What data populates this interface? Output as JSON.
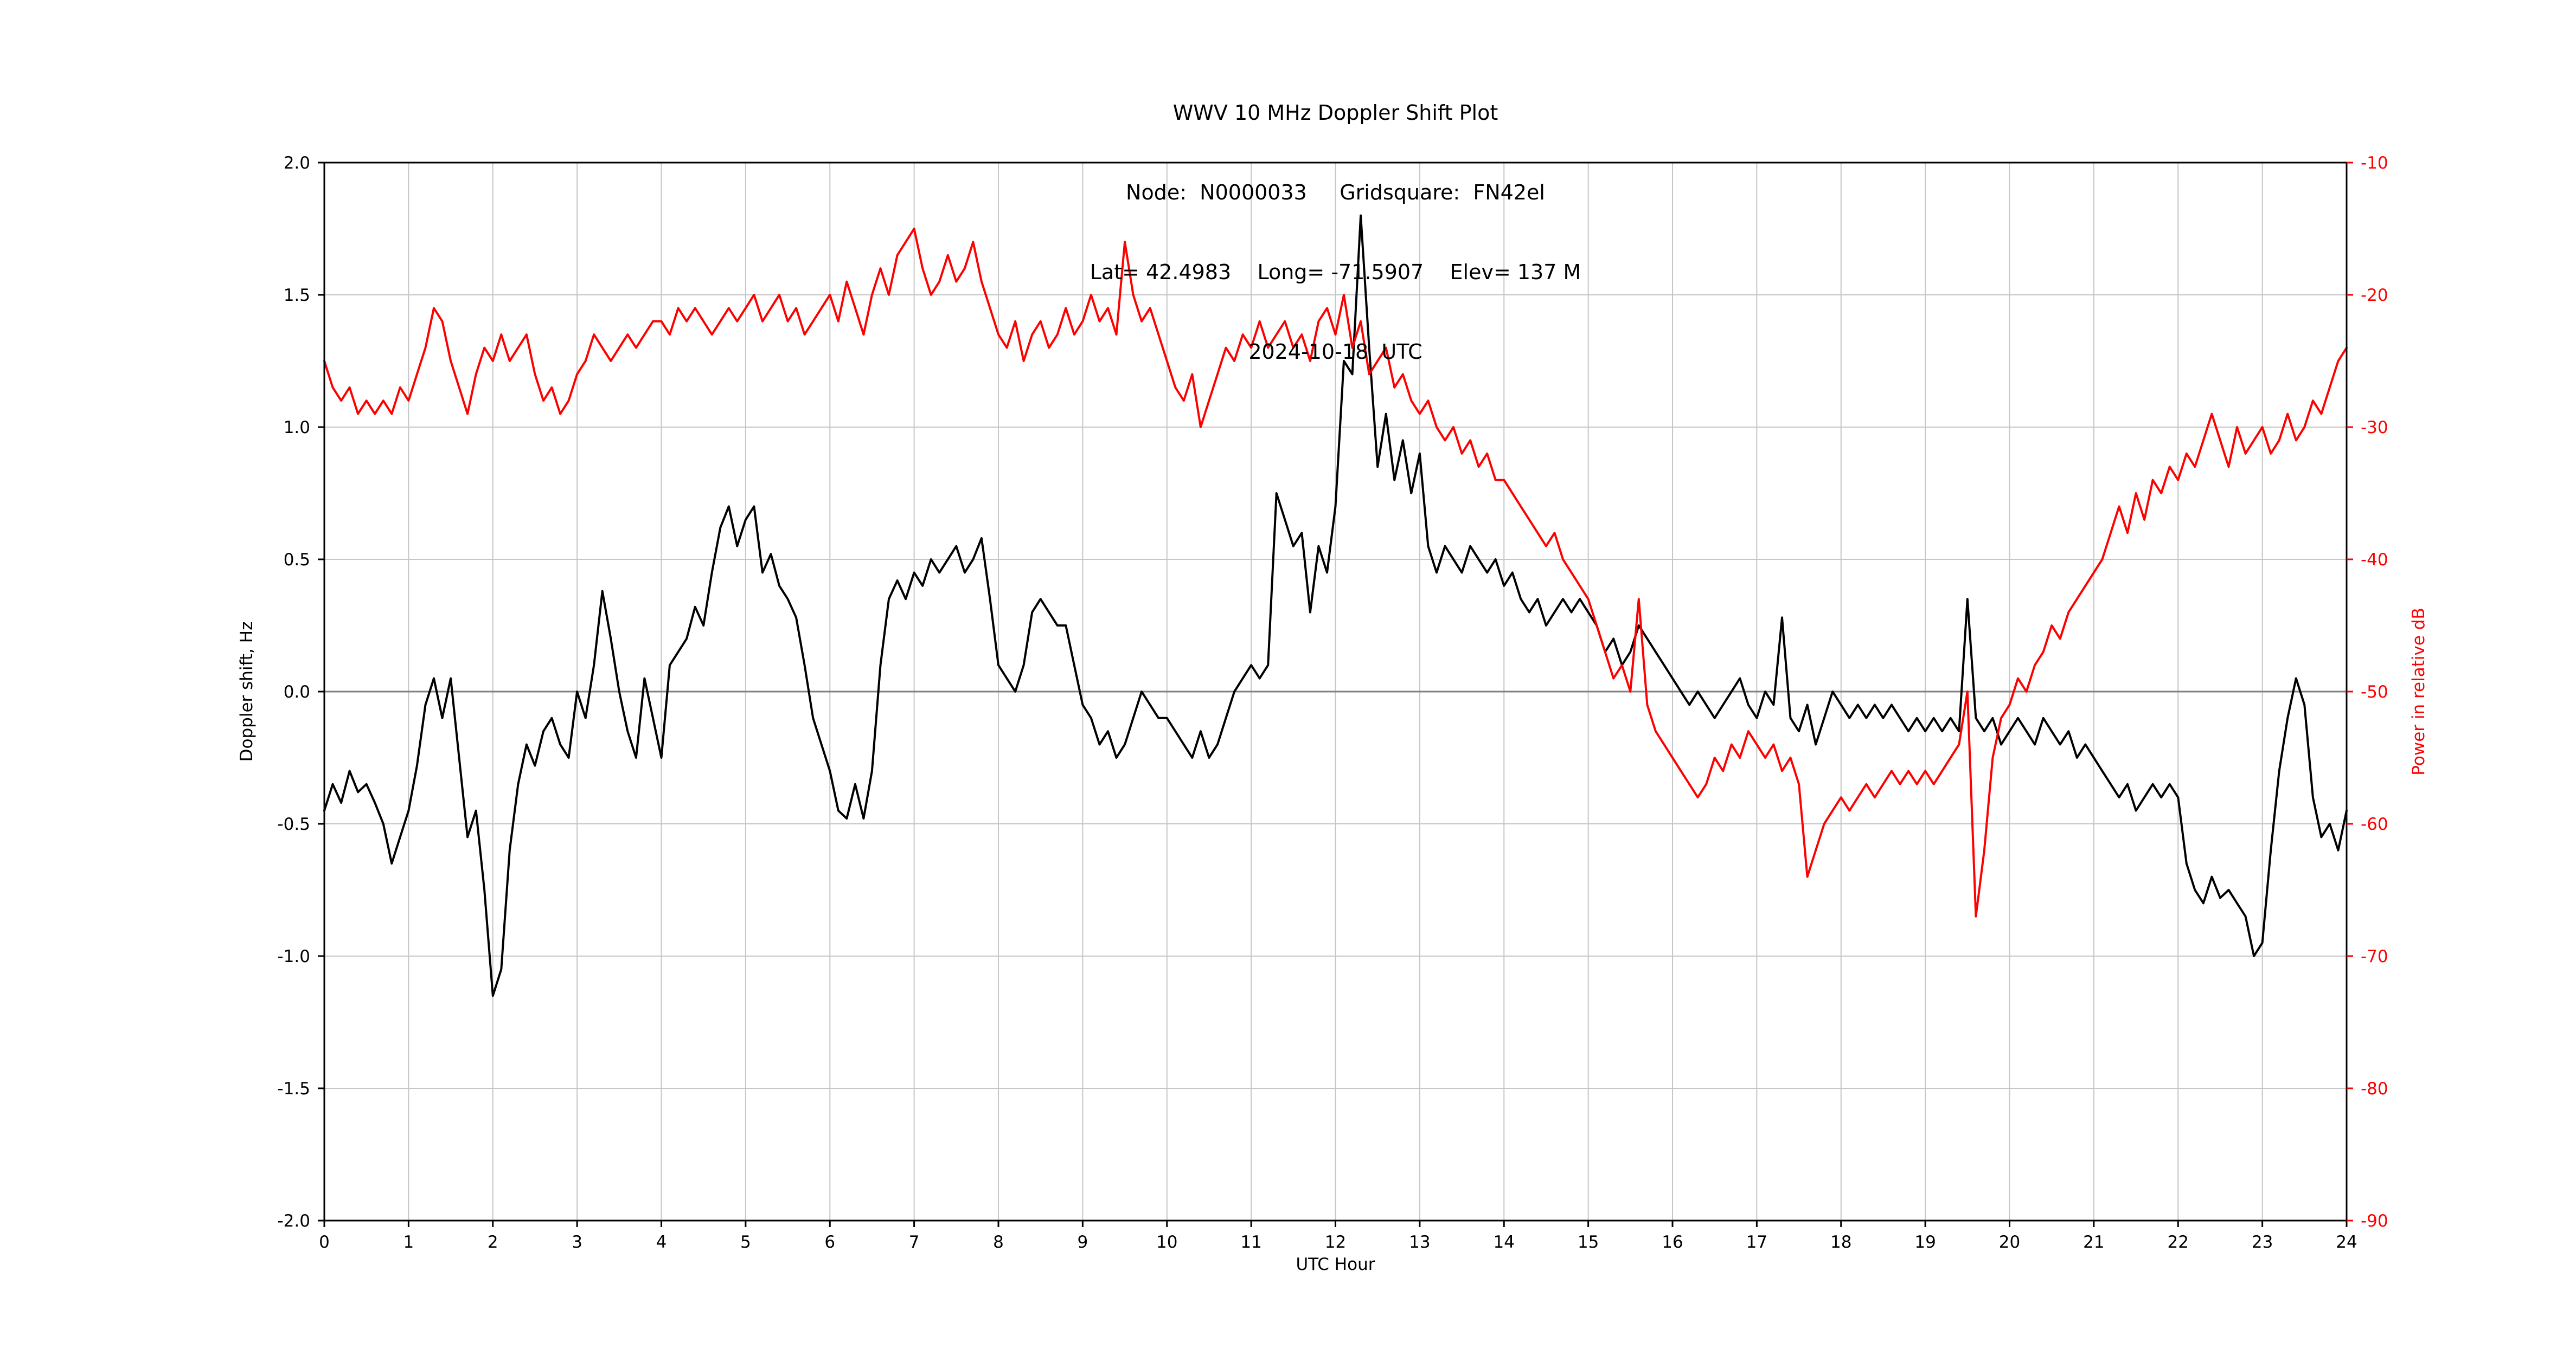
{
  "chart_data": {
    "type": "line",
    "title": "WWV 10 MHz Doppler Shift Plot",
    "subtitle_lines": [
      "Node:  N0000033     Gridsquare:  FN42el",
      "Lat= 42.4983    Long= -71.5907    Elev= 137 M",
      "2024-10-18  UTC"
    ],
    "xlabel": "UTC Hour",
    "ylabel_left": "Doppler shift, Hz",
    "ylabel_right": "Power in relative dB",
    "grid": true,
    "legend": "none",
    "x_range": [
      0,
      24
    ],
    "x_ticks": [
      0,
      1,
      2,
      3,
      4,
      5,
      6,
      7,
      8,
      9,
      10,
      11,
      12,
      13,
      14,
      15,
      16,
      17,
      18,
      19,
      20,
      21,
      22,
      23,
      24
    ],
    "x_tick_labels": [
      "0",
      "1",
      "2",
      "3",
      "4",
      "5",
      "6",
      "7",
      "8",
      "9",
      "10",
      "11",
      "12",
      "13",
      "14",
      "15",
      "16",
      "17",
      "18",
      "19",
      "20",
      "21",
      "22",
      "23",
      "24"
    ],
    "y_left_range": [
      -2.0,
      2.0
    ],
    "y_left_ticks": [
      2.0,
      1.5,
      1.0,
      0.5,
      0.0,
      -0.5,
      -1.0,
      -1.5,
      -2.0
    ],
    "y_left_tick_labels": [
      "2.0",
      "1.5",
      "1.0",
      "0.5",
      "0.0",
      "-0.5",
      "-1.0",
      "-1.5",
      "-2.0"
    ],
    "y_right_range": [
      -90,
      -10
    ],
    "y_right_ticks": [
      -10,
      -20,
      -30,
      -40,
      -50,
      -60,
      -70,
      -80,
      -90
    ],
    "y_right_tick_labels": [
      "-10",
      "-20",
      "-30",
      "-40",
      "-50",
      "-60",
      "-70",
      "-80",
      "-90"
    ],
    "zero_line": true,
    "colors": {
      "doppler": "#000000",
      "power": "#ff0000",
      "grid": "#c6c6c6",
      "zero_line": "#808080",
      "frame": "#000000"
    },
    "series": [
      {
        "id": "doppler-shift",
        "name": "Doppler shift, Hz",
        "axis": "left",
        "color": "#000000",
        "x_start": 0,
        "x_step": 0.1,
        "y": [
          -0.45,
          -0.35,
          -0.42,
          -0.3,
          -0.38,
          -0.35,
          -0.42,
          -0.5,
          -0.65,
          -0.55,
          -0.45,
          -0.28,
          -0.05,
          0.05,
          -0.1,
          0.05,
          -0.25,
          -0.55,
          -0.45,
          -0.75,
          -1.15,
          -1.05,
          -0.6,
          -0.35,
          -0.2,
          -0.28,
          -0.15,
          -0.1,
          -0.2,
          -0.25,
          0.0,
          -0.1,
          0.1,
          0.38,
          0.2,
          0.0,
          -0.15,
          -0.25,
          0.05,
          -0.1,
          -0.25,
          0.1,
          0.15,
          0.2,
          0.32,
          0.25,
          0.45,
          0.62,
          0.7,
          0.55,
          0.65,
          0.7,
          0.45,
          0.52,
          0.4,
          0.35,
          0.28,
          0.1,
          -0.1,
          -0.2,
          -0.3,
          -0.45,
          -0.48,
          -0.35,
          -0.48,
          -0.3,
          0.1,
          0.35,
          0.42,
          0.35,
          0.45,
          0.4,
          0.5,
          0.45,
          0.5,
          0.55,
          0.45,
          0.5,
          0.58,
          0.35,
          0.1,
          0.05,
          0.0,
          0.1,
          0.3,
          0.35,
          0.3,
          0.25,
          0.25,
          0.1,
          -0.05,
          -0.1,
          -0.2,
          -0.15,
          -0.25,
          -0.2,
          -0.1,
          0.0,
          -0.05,
          -0.1,
          -0.1,
          -0.15,
          -0.2,
          -0.25,
          -0.15,
          -0.25,
          -0.2,
          -0.1,
          0.0,
          0.05,
          0.1,
          0.05,
          0.1,
          0.75,
          0.65,
          0.55,
          0.6,
          0.3,
          0.55,
          0.45,
          0.7,
          1.25,
          1.2,
          1.8,
          1.3,
          0.85,
          1.05,
          0.8,
          0.95,
          0.75,
          0.9,
          0.55,
          0.45,
          0.55,
          0.5,
          0.45,
          0.55,
          0.5,
          0.45,
          0.5,
          0.4,
          0.45,
          0.35,
          0.3,
          0.35,
          0.25,
          0.3,
          0.35,
          0.3,
          0.35,
          0.3,
          0.25,
          0.15,
          0.2,
          0.1,
          0.15,
          0.25,
          0.2,
          0.15,
          0.1,
          0.05,
          0.0,
          -0.05,
          0.0,
          -0.05,
          -0.1,
          -0.05,
          0.0,
          0.05,
          -0.05,
          -0.1,
          0.0,
          -0.05,
          0.28,
          -0.1,
          -0.15,
          -0.05,
          -0.2,
          -0.1,
          0.0,
          -0.05,
          -0.1,
          -0.05,
          -0.1,
          -0.05,
          -0.1,
          -0.05,
          -0.1,
          -0.15,
          -0.1,
          -0.15,
          -0.1,
          -0.15,
          -0.1,
          -0.15,
          0.35,
          -0.1,
          -0.15,
          -0.1,
          -0.2,
          -0.15,
          -0.1,
          -0.15,
          -0.2,
          -0.1,
          -0.15,
          -0.2,
          -0.15,
          -0.25,
          -0.2,
          -0.25,
          -0.3,
          -0.35,
          -0.4,
          -0.35,
          -0.45,
          -0.4,
          -0.35,
          -0.4,
          -0.35,
          -0.4,
          -0.65,
          -0.75,
          -0.8,
          -0.7,
          -0.78,
          -0.75,
          -0.8,
          -0.85,
          -1.0,
          -0.95,
          -0.6,
          -0.3,
          -0.1,
          0.05,
          -0.05,
          -0.4,
          -0.55,
          -0.5,
          -0.6,
          -0.45
        ]
      },
      {
        "id": "power",
        "name": "Power in relative dB",
        "axis": "right",
        "color": "#ff0000",
        "x_start": 0,
        "x_step": 0.1,
        "y": [
          -25,
          -27,
          -28,
          -27,
          -29,
          -28,
          -29,
          -28,
          -29,
          -27,
          -28,
          -26,
          -24,
          -21,
          -22,
          -25,
          -27,
          -29,
          -26,
          -24,
          -25,
          -23,
          -25,
          -24,
          -23,
          -26,
          -28,
          -27,
          -29,
          -28,
          -26,
          -25,
          -23,
          -24,
          -25,
          -24,
          -23,
          -24,
          -23,
          -22,
          -22,
          -23,
          -21,
          -22,
          -21,
          -22,
          -23,
          -22,
          -21,
          -22,
          -21,
          -20,
          -22,
          -21,
          -20,
          -22,
          -21,
          -23,
          -22,
          -21,
          -20,
          -22,
          -19,
          -21,
          -23,
          -20,
          -18,
          -20,
          -17,
          -16,
          -15,
          -18,
          -20,
          -19,
          -17,
          -19,
          -18,
          -16,
          -19,
          -21,
          -23,
          -24,
          -22,
          -25,
          -23,
          -22,
          -24,
          -23,
          -21,
          -23,
          -22,
          -20,
          -22,
          -21,
          -23,
          -16,
          -20,
          -22,
          -21,
          -23,
          -25,
          -27,
          -28,
          -26,
          -30,
          -28,
          -26,
          -24,
          -25,
          -23,
          -24,
          -22,
          -24,
          -23,
          -22,
          -24,
          -23,
          -25,
          -22,
          -21,
          -23,
          -20,
          -24,
          -22,
          -26,
          -25,
          -24,
          -27,
          -26,
          -28,
          -29,
          -28,
          -30,
          -31,
          -30,
          -32,
          -31,
          -33,
          -32,
          -34,
          -34,
          -35,
          -36,
          -37,
          -38,
          -39,
          -38,
          -40,
          -41,
          -42,
          -43,
          -45,
          -47,
          -49,
          -48,
          -50,
          -43,
          -51,
          -53,
          -54,
          -55,
          -56,
          -57,
          -58,
          -57,
          -55,
          -56,
          -54,
          -55,
          -53,
          -54,
          -55,
          -54,
          -56,
          -55,
          -57,
          -64,
          -62,
          -60,
          -59,
          -58,
          -59,
          -58,
          -57,
          -58,
          -57,
          -56,
          -57,
          -56,
          -57,
          -56,
          -57,
          -56,
          -55,
          -54,
          -50,
          -67,
          -62,
          -55,
          -52,
          -51,
          -49,
          -50,
          -48,
          -47,
          -45,
          -46,
          -44,
          -43,
          -42,
          -41,
          -40,
          -38,
          -36,
          -38,
          -35,
          -37,
          -34,
          -35,
          -33,
          -34,
          -32,
          -33,
          -31,
          -29,
          -31,
          -33,
          -30,
          -32,
          -31,
          -30,
          -32,
          -31,
          -29,
          -31,
          -30,
          -28,
          -29,
          -27,
          -25,
          -24
        ]
      }
    ]
  }
}
